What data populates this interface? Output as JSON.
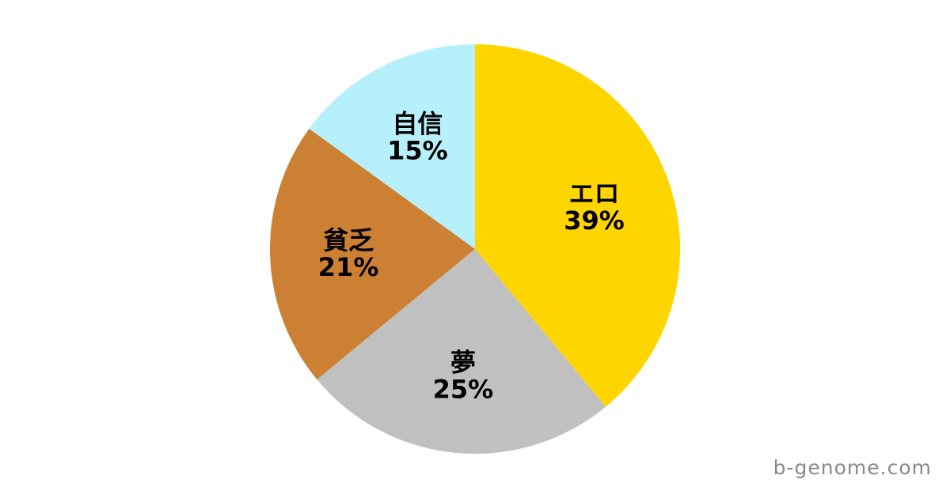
{
  "page": {
    "background": "#FFFFFF"
  },
  "watermark": {
    "text": "b-genome.com",
    "color": "#8A8A8A"
  },
  "chart_data": {
    "type": "pie",
    "title": "",
    "categories": [
      "エロ",
      "夢",
      "貧乏",
      "自信"
    ],
    "values": [
      39,
      25,
      21,
      15
    ],
    "unit": "%",
    "colors": [
      "#FFD500",
      "#C0C0C0",
      "#CC8033",
      "#B6F0FB"
    ],
    "label_text_color": "#000000",
    "start_angle_deg": 0,
    "direction": "clockwise",
    "legend": "none",
    "labels_inside": true
  }
}
